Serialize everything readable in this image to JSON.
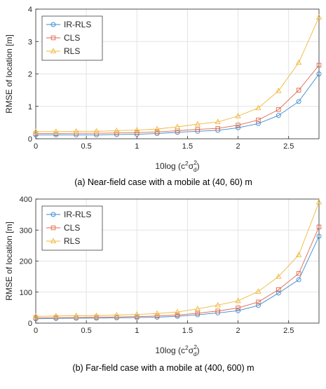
{
  "chart_data": [
    {
      "type": "line",
      "caption": "(a) Near-field case with a mobile at (40, 60) m",
      "xlabel": "10log (c²σ²d)",
      "xlabel_parts": {
        "prefix": "10log (c",
        "sup1": "2",
        "sigma": "σ",
        "sup2": "2",
        "sub": "d",
        "suffix": ")"
      },
      "ylabel": "RMSE of location [m]",
      "xlim": [
        0,
        2.8
      ],
      "ylim": [
        0,
        4
      ],
      "xticks": [
        0,
        0.5,
        1,
        1.5,
        2,
        2.5
      ],
      "xtick_labels": [
        "0",
        "0.5",
        "1",
        "1.5",
        "2",
        "2.5"
      ],
      "yticks": [
        0,
        1,
        2,
        3,
        4
      ],
      "ytick_labels": [
        "0",
        "1",
        "2",
        "3",
        "4"
      ],
      "grid": true,
      "legend_position": "top-left",
      "x": [
        0,
        0.2,
        0.4,
        0.6,
        0.8,
        1.0,
        1.2,
        1.4,
        1.6,
        1.8,
        2.0,
        2.2,
        2.4,
        2.6,
        2.8
      ],
      "series": [
        {
          "name": "IR-RLS",
          "marker": "circle",
          "color": "#3a8ad0",
          "values": [
            0.12,
            0.12,
            0.12,
            0.12,
            0.13,
            0.14,
            0.16,
            0.2,
            0.23,
            0.26,
            0.34,
            0.47,
            0.72,
            1.15,
            2.0
          ]
        },
        {
          "name": "CLS",
          "marker": "square",
          "color": "#e0684a",
          "values": [
            0.16,
            0.16,
            0.17,
            0.17,
            0.18,
            0.19,
            0.21,
            0.25,
            0.29,
            0.32,
            0.42,
            0.58,
            0.9,
            1.5,
            2.27
          ]
        },
        {
          "name": "RLS",
          "marker": "triangle",
          "color": "#f0b73a",
          "values": [
            0.22,
            0.22,
            0.23,
            0.23,
            0.25,
            0.27,
            0.3,
            0.37,
            0.45,
            0.52,
            0.7,
            0.95,
            1.48,
            2.35,
            3.75
          ]
        }
      ]
    },
    {
      "type": "line",
      "caption": "(b) Far-field case with a mobile at (400, 600) m",
      "xlabel": "10log (c²σ²d)",
      "xlabel_parts": {
        "prefix": "10log (c",
        "sup1": "2",
        "sigma": "σ",
        "sup2": "2",
        "sub": "d",
        "suffix": ")"
      },
      "ylabel": "RMSE of location [m]",
      "xlim": [
        0,
        2.8
      ],
      "ylim": [
        0,
        400
      ],
      "xticks": [
        0,
        0.5,
        1,
        1.5,
        2,
        2.5
      ],
      "xtick_labels": [
        "0",
        "0.5",
        "1",
        "1.5",
        "2",
        "2.5"
      ],
      "yticks": [
        0,
        100,
        200,
        300,
        400
      ],
      "ytick_labels": [
        "0",
        "100",
        "200",
        "300",
        "400"
      ],
      "grid": true,
      "legend_position": "top-left",
      "x": [
        0,
        0.2,
        0.4,
        0.6,
        0.8,
        1.0,
        1.2,
        1.4,
        1.6,
        1.8,
        2.0,
        2.2,
        2.4,
        2.6,
        2.8
      ],
      "series": [
        {
          "name": "IR-RLS",
          "marker": "circle",
          "color": "#3a8ad0",
          "values": [
            14,
            15,
            16,
            16,
            17,
            18,
            19,
            22,
            27,
            33,
            40,
            57,
            97,
            140,
            280
          ]
        },
        {
          "name": "CLS",
          "marker": "square",
          "color": "#e0684a",
          "values": [
            17,
            18,
            18,
            19,
            20,
            21,
            23,
            26,
            32,
            39,
            49,
            68,
            108,
            160,
            310
          ]
        },
        {
          "name": "RLS",
          "marker": "triangle",
          "color": "#f0b73a",
          "values": [
            22,
            23,
            24,
            24,
            26,
            28,
            31,
            36,
            46,
            58,
            72,
            102,
            150,
            220,
            390
          ]
        }
      ]
    }
  ]
}
